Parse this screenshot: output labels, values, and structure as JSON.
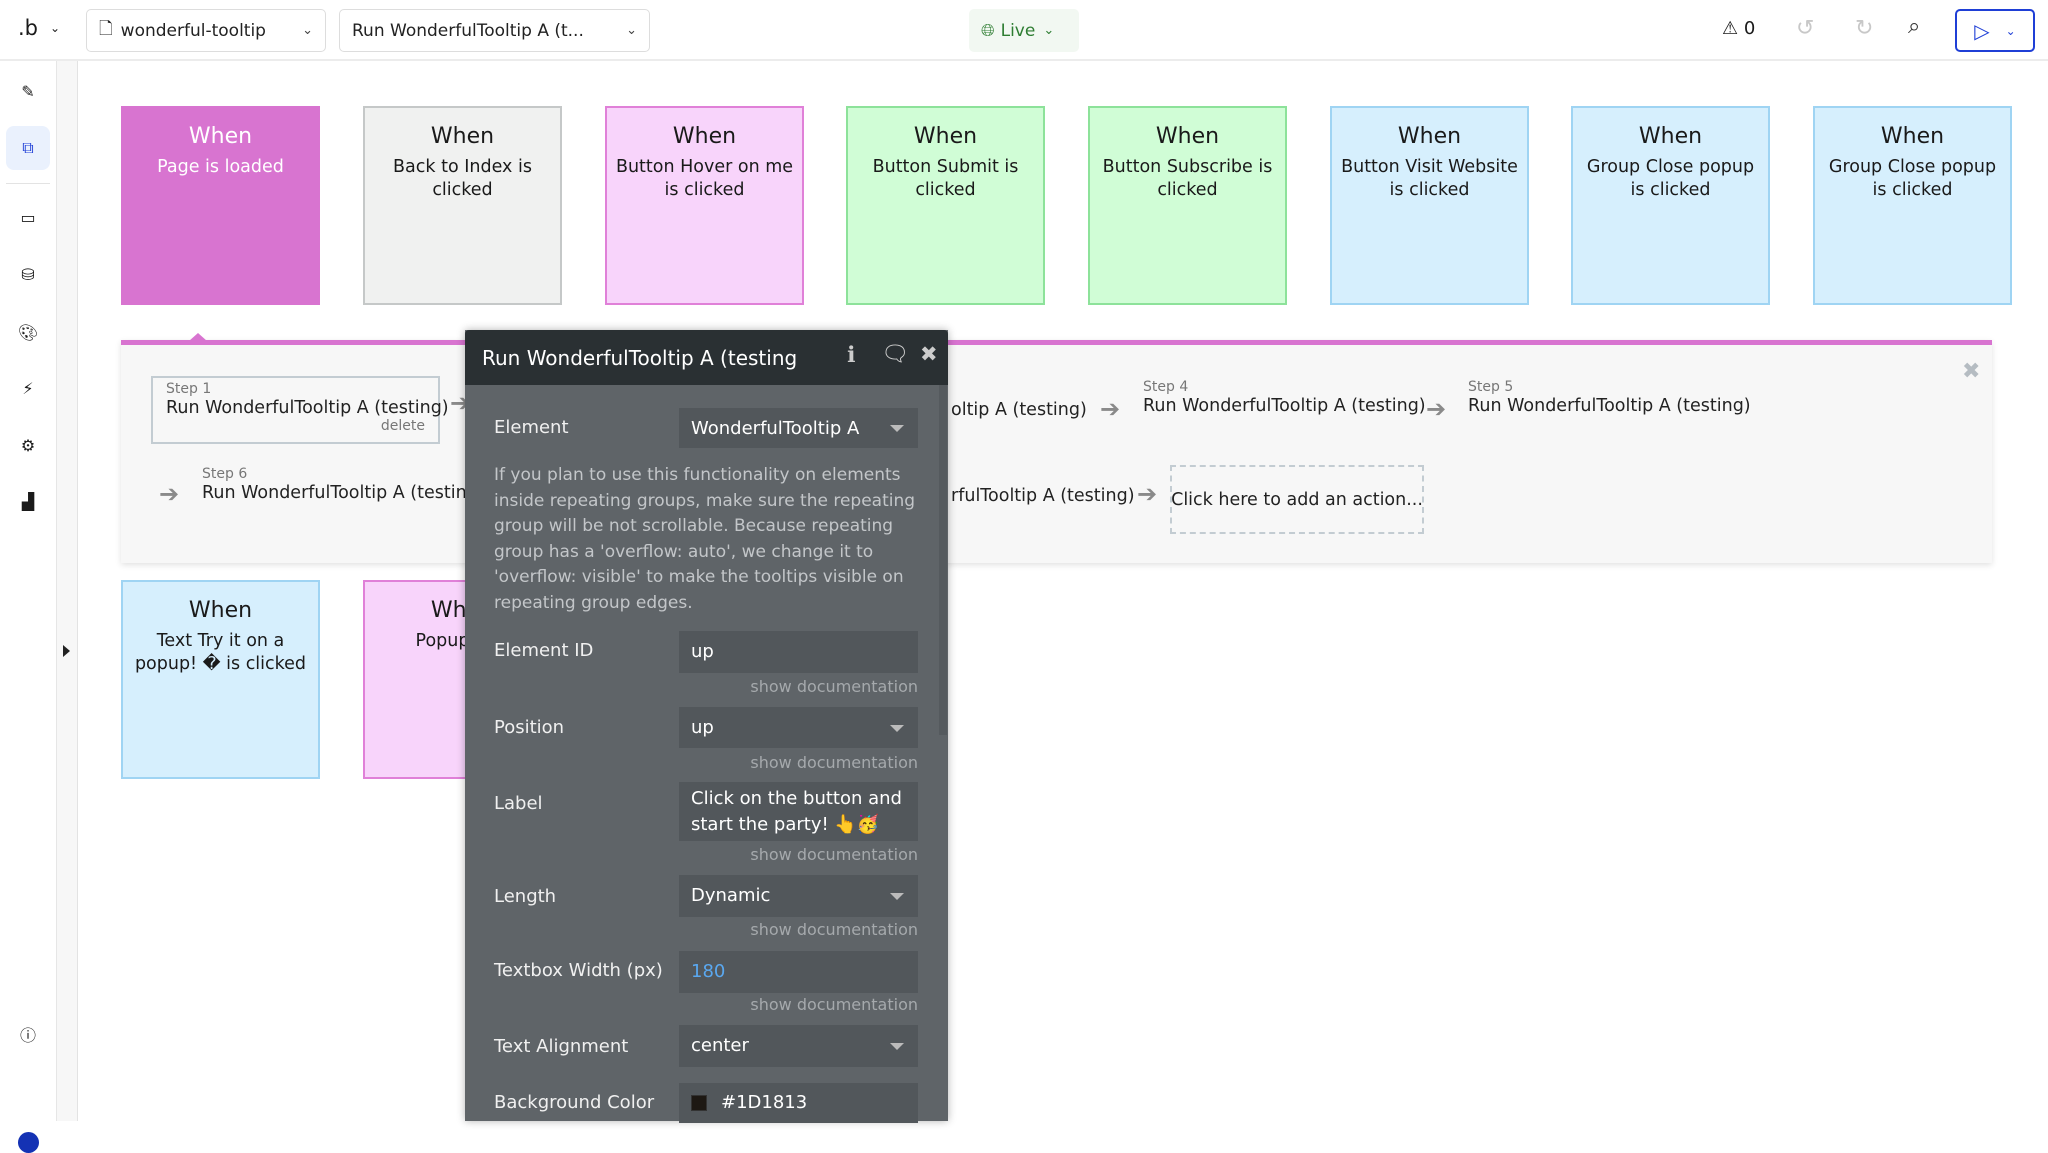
{
  "topbar": {
    "logo": ".b",
    "page_select": "wonderful-tooltip",
    "workflow_select": "Run WonderfulTooltip A (t...",
    "live_label": "Live",
    "issues_count": "0"
  },
  "sidebar": {
    "items": [
      "design-pencil",
      "workflow",
      "elements",
      "data",
      "styles",
      "plugins",
      "settings",
      "logs"
    ],
    "active": "workflow"
  },
  "events": [
    {
      "when": "When",
      "desc": "Page is loaded",
      "bg": "#d874d0",
      "border": "#d874d0",
      "color": "#ffffff"
    },
    {
      "when": "When",
      "desc": "Back to Index is clicked",
      "bg": "#f0f1f0",
      "border": "#c5c8c8",
      "color": "#1a1a1a"
    },
    {
      "when": "When",
      "desc": "Button Hover on me is clicked",
      "bg": "#f8d4fb",
      "border": "#e080d8",
      "color": "#1a1a1a"
    },
    {
      "when": "When",
      "desc": "Button Submit is clicked",
      "bg": "#d0fdd6",
      "border": "#8de29a",
      "color": "#1a1a1a"
    },
    {
      "when": "When",
      "desc": "Button Subscribe is clicked",
      "bg": "#d0fdd6",
      "border": "#8de29a",
      "color": "#1a1a1a"
    },
    {
      "when": "When",
      "desc": "Button Visit Website is clicked",
      "bg": "#d6effd",
      "border": "#9fd4f3",
      "color": "#1a1a1a"
    },
    {
      "when": "When",
      "desc": "Group Close popup is clicked",
      "bg": "#d6effd",
      "border": "#9fd4f3",
      "color": "#1a1a1a"
    },
    {
      "when": "When",
      "desc": "Group Close popup is clicked",
      "bg": "#d6effd",
      "border": "#9fd4f3",
      "color": "#1a1a1a"
    },
    {
      "when": "When",
      "desc": "Text Try it on a popup! � is clicked",
      "bg": "#d6effd",
      "border": "#9fd4f3",
      "color": "#1a1a1a"
    },
    {
      "when": "When",
      "desc": "Popup Test",
      "bg": "#f8d4fb",
      "border": "#e080d8",
      "color": "#1a1a1a"
    }
  ],
  "workflow": {
    "step1": {
      "num": "Step 1",
      "name": "Run WonderfulTooltip A (testing)",
      "delete": "delete"
    },
    "step3_partial": "oltip A (testing)",
    "step4": {
      "num": "Step 4",
      "name": "Run WonderfulTooltip A (testing)"
    },
    "step5": {
      "num": "Step 5",
      "name": "Run WonderfulTooltip A (testing)"
    },
    "step6": {
      "num": "Step 6",
      "name": "Run WonderfulTooltip A (testing)"
    },
    "step7_partial": "rfulTooltip A (testing)",
    "add_action": "Click here to add an action..."
  },
  "editor": {
    "title": "Run WonderfulTooltip A (testing",
    "element_label": "Element",
    "element_value": "WonderfulTooltip A",
    "note": "If you plan to use this functionality on elements inside repeating groups, make sure the repeating group will be not scrollable. Because repeating group has a 'overflow: auto', we change it to 'overflow: visible' to make the tooltips visible on repeating group edges.",
    "element_id_label": "Element ID",
    "element_id_value": "up",
    "position_label": "Position",
    "position_value": "up",
    "label_label": "Label",
    "label_value": "Click on the button and start the party! 👆🥳",
    "length_label": "Length",
    "length_value": "Dynamic",
    "width_label": "Textbox Width (px)",
    "width_value": "180",
    "align_label": "Text Alignment",
    "align_value": "center",
    "bg_label": "Background Color",
    "bg_value": "#1D1813",
    "show_doc": "show documentation"
  }
}
